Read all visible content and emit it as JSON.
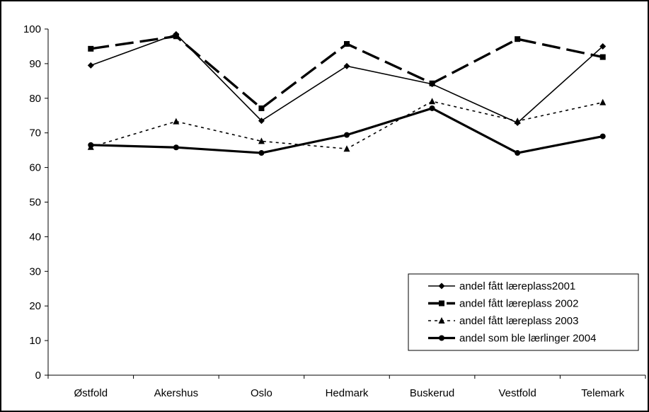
{
  "chart_data": {
    "type": "line",
    "categories": [
      "Østfold",
      "Akershus",
      "Oslo",
      "Hedmark",
      "Buskerud",
      "Vestfold",
      "Telemark"
    ],
    "ylim": [
      0,
      100
    ],
    "yticks": [
      0,
      10,
      20,
      30,
      40,
      50,
      60,
      70,
      80,
      90,
      100
    ],
    "grid": false,
    "legend_position": "bottom-right",
    "series": [
      {
        "name": "andel fått læreplass2001",
        "values": [
          89.5,
          98.5,
          73.5,
          89.3,
          84.1,
          72.9,
          95.0
        ],
        "marker": "diamond",
        "line": "solid-thin"
      },
      {
        "name": "andel fått læreplass 2002",
        "values": [
          94.3,
          97.9,
          77.1,
          95.7,
          84.3,
          97.1,
          91.9
        ],
        "marker": "square",
        "line": "long-dash-thick"
      },
      {
        "name": "andel fått læreplass 2003",
        "values": [
          65.9,
          73.3,
          67.6,
          65.4,
          79.1,
          73.4,
          78.8
        ],
        "marker": "triangle",
        "line": "dotted"
      },
      {
        "name": "andel som ble lærlinger 2004",
        "values": [
          66.5,
          65.8,
          64.2,
          69.4,
          77.1,
          64.2,
          69.0
        ],
        "marker": "circle",
        "line": "solid-thick"
      }
    ]
  }
}
